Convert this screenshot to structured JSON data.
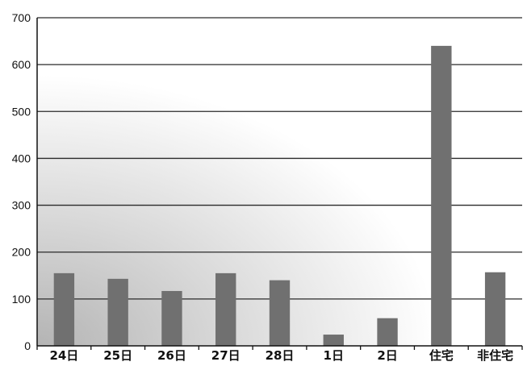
{
  "chart_data": {
    "type": "bar",
    "title": "",
    "xlabel": "",
    "ylabel": "",
    "categories": [
      "24日",
      "25日",
      "26日",
      "27日",
      "28日",
      "1日",
      "2日",
      "住宅",
      "非住宅"
    ],
    "values": [
      155,
      143,
      117,
      155,
      140,
      24,
      59,
      640,
      157
    ],
    "ylim": [
      0,
      700
    ],
    "yticks": [
      0,
      100,
      200,
      300,
      400,
      500,
      600,
      700
    ],
    "grid": true,
    "legend": "none",
    "colors": {
      "bar": "#707070",
      "grid": "#2a2a2a",
      "gradient_dark": "#b4b4b4",
      "gradient_light": "#ffffff"
    }
  }
}
